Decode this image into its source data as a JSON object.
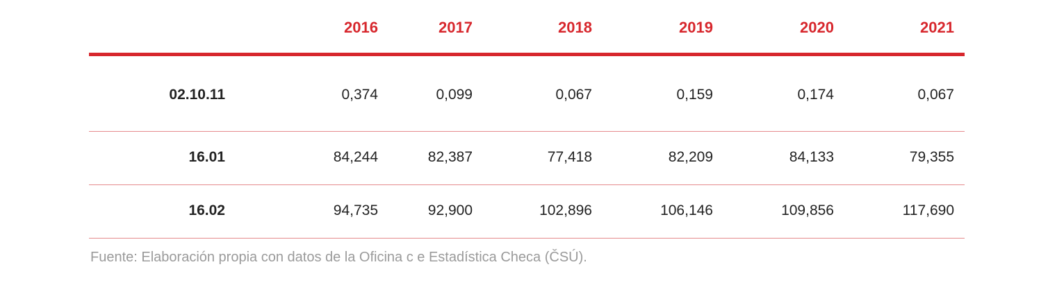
{
  "table": {
    "headers": [
      "2016",
      "2017",
      "2018",
      "2019",
      "2020",
      "2021"
    ],
    "rows": [
      {
        "label": "02.10.11",
        "values": [
          "0,374",
          "0,099",
          "0,067",
          "0,159",
          "0,174",
          "0,067"
        ]
      },
      {
        "label": "16.01",
        "values": [
          "84,244",
          "82,387",
          "77,418",
          "82,209",
          "84,133",
          "79,355"
        ]
      },
      {
        "label": "16.02",
        "values": [
          "94,735",
          "92,900",
          "102,896",
          "106,146",
          "109,856",
          "117,690"
        ]
      }
    ]
  },
  "source": "Fuente: Elaboración propia con datos de la Oficina c e Estadística Checa (ČSÚ).",
  "colors": {
    "accent": "#d7272d",
    "row_divider": "#e58a8d",
    "text": "#222222",
    "source_text": "#9a9a9a"
  }
}
